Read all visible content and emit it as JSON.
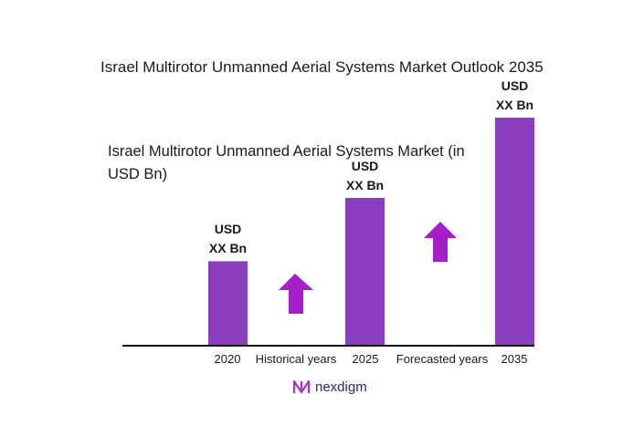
{
  "title": "Israel Multirotor Unmanned Aerial Systems Market Outlook 2035",
  "chart_data": {
    "type": "bar",
    "title": "Israel Multirotor Unmanned Aerial Systems Market (in USD Bn)",
    "categories": [
      "2020",
      "2025",
      "2035"
    ],
    "values": [
      1.0,
      1.75,
      2.7
    ],
    "value_labels": [
      "USD\nXX Bn",
      "USD\nXX Bn",
      "USD\nXX Bn"
    ],
    "period_labels": [
      "Historical years",
      "Forecasted years"
    ],
    "bar_color": "#8a3dbd",
    "arrow_color": "#a51ec9",
    "grid": false
  },
  "brand": {
    "name": "nexdigm",
    "color": "#3b1c6b",
    "accent": "#b02ecf"
  }
}
